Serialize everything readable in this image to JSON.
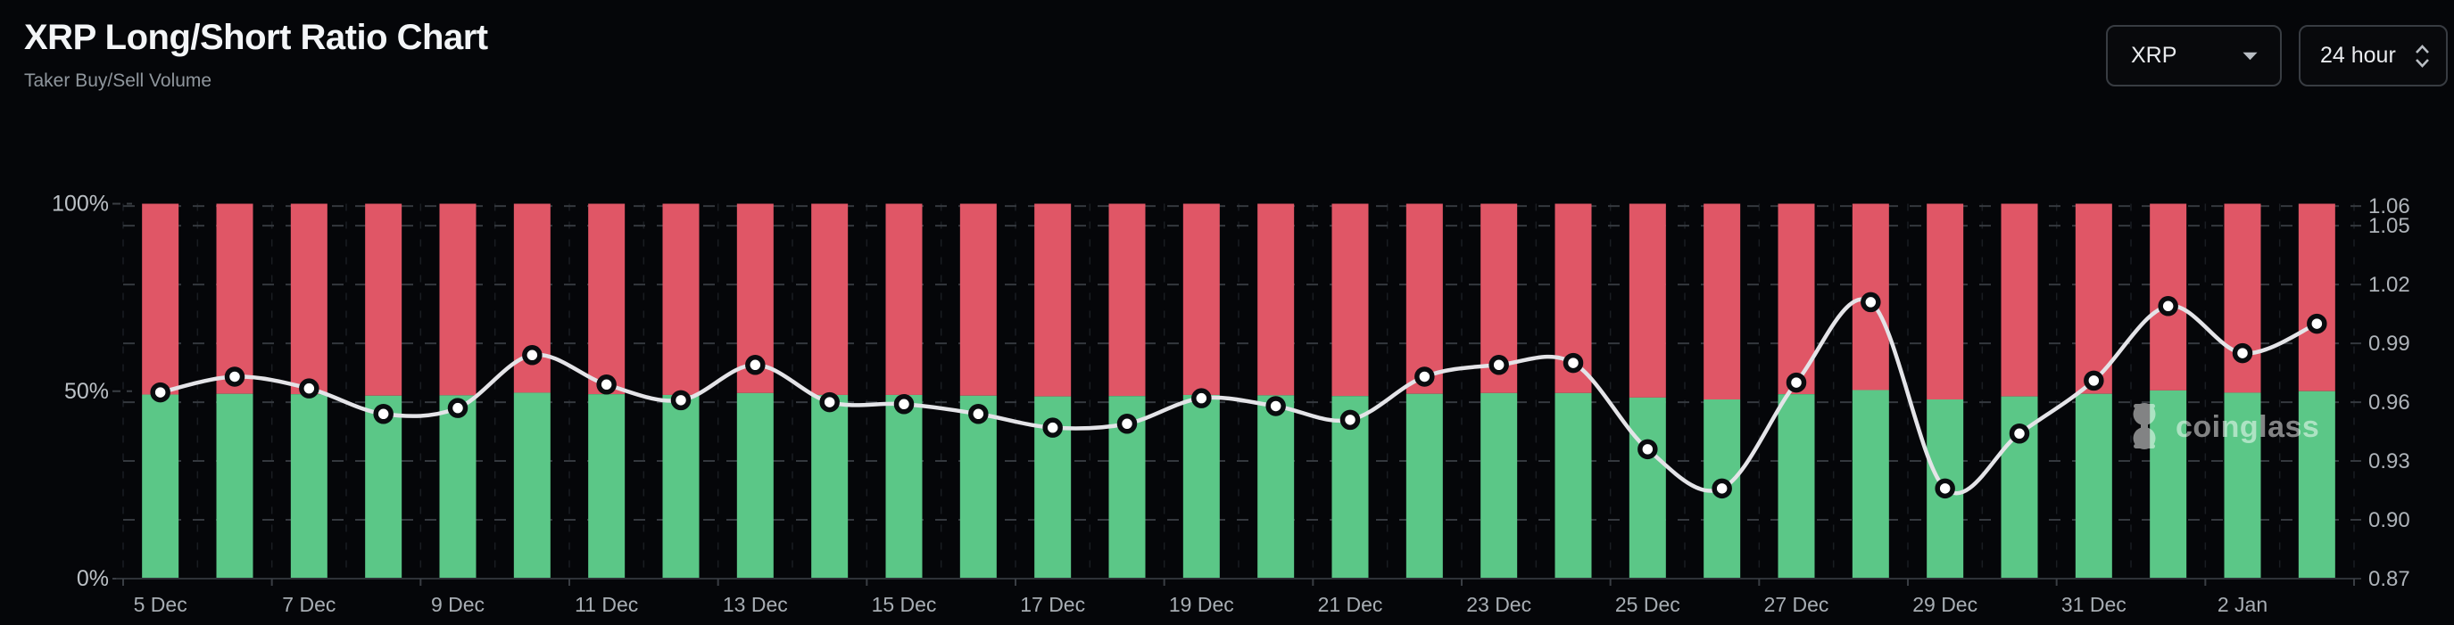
{
  "header": {
    "title": "XRP Long/Short Ratio Chart",
    "subtitle": "Taker Buy/Sell Volume"
  },
  "controls": {
    "symbol_value": "XRP",
    "interval_value": "24 hour"
  },
  "watermark": {
    "text": "coinglass"
  },
  "chart_data": {
    "type": "bar+line",
    "description": "Stacked percentage bars (taker buy green / taker sell red) with smoothed buy/sell ratio line on right axis",
    "categories": [
      "5 Dec",
      "6 Dec",
      "7 Dec",
      "8 Dec",
      "9 Dec",
      "10 Dec",
      "11 Dec",
      "12 Dec",
      "13 Dec",
      "14 Dec",
      "15 Dec",
      "16 Dec",
      "17 Dec",
      "18 Dec",
      "19 Dec",
      "20 Dec",
      "21 Dec",
      "22 Dec",
      "23 Dec",
      "24 Dec",
      "25 Dec",
      "26 Dec",
      "27 Dec",
      "28 Dec",
      "29 Dec",
      "30 Dec",
      "31 Dec",
      "1 Jan",
      "2 Jan",
      "3 Jan"
    ],
    "x_labeled_every": 2,
    "series": [
      {
        "name": "Taker Buy %",
        "axis": "left",
        "color": "#5bc787",
        "values": [
          49.1,
          49.3,
          49.2,
          48.8,
          48.9,
          49.6,
          49.2,
          49.0,
          49.5,
          49.0,
          49.0,
          48.8,
          48.6,
          48.7,
          49.0,
          48.9,
          48.7,
          49.3,
          49.5,
          49.5,
          48.3,
          47.8,
          49.2,
          50.3,
          47.8,
          48.6,
          49.3,
          50.2,
          49.6,
          50.0
        ]
      },
      {
        "name": "Taker Sell %",
        "axis": "left",
        "color": "#e05666",
        "values": [
          50.9,
          50.7,
          50.8,
          51.2,
          51.1,
          50.4,
          50.8,
          51.0,
          50.5,
          51.0,
          51.0,
          51.2,
          51.4,
          51.3,
          51.0,
          51.1,
          51.3,
          50.7,
          50.5,
          50.5,
          51.7,
          52.2,
          50.8,
          49.7,
          52.2,
          51.4,
          50.7,
          49.8,
          50.4,
          50.0
        ]
      },
      {
        "name": "Buy/Sell Ratio",
        "axis": "right",
        "color": "#e4e4e8",
        "values": [
          0.965,
          0.973,
          0.967,
          0.954,
          0.957,
          0.984,
          0.969,
          0.961,
          0.979,
          0.96,
          0.959,
          0.954,
          0.947,
          0.949,
          0.962,
          0.958,
          0.951,
          0.973,
          0.979,
          0.98,
          0.936,
          0.916,
          0.97,
          1.011,
          0.916,
          0.944,
          0.971,
          1.009,
          0.985,
          1.0
        ]
      }
    ],
    "left_axis": {
      "range": [
        0,
        100
      ],
      "ticks": [
        {
          "value": 100,
          "label": "100%"
        },
        {
          "value": 50,
          "label": "50%"
        },
        {
          "value": 0,
          "label": "0%"
        }
      ]
    },
    "right_axis": {
      "range": [
        0.87,
        1.0612
      ],
      "ticks": [
        {
          "value": 1.06,
          "label": "1.06"
        },
        {
          "value": 1.05,
          "label": "1.05"
        },
        {
          "value": 1.02,
          "label": "1.02"
        },
        {
          "value": 0.99,
          "label": "0.99"
        },
        {
          "value": 0.96,
          "label": "0.96"
        },
        {
          "value": 0.93,
          "label": "0.93"
        },
        {
          "value": 0.9,
          "label": "0.90"
        },
        {
          "value": 0.87,
          "label": "0.87"
        }
      ]
    },
    "grid": {
      "horizontal": true,
      "vertical": true,
      "style": "dashed"
    },
    "legend_position": "none"
  }
}
